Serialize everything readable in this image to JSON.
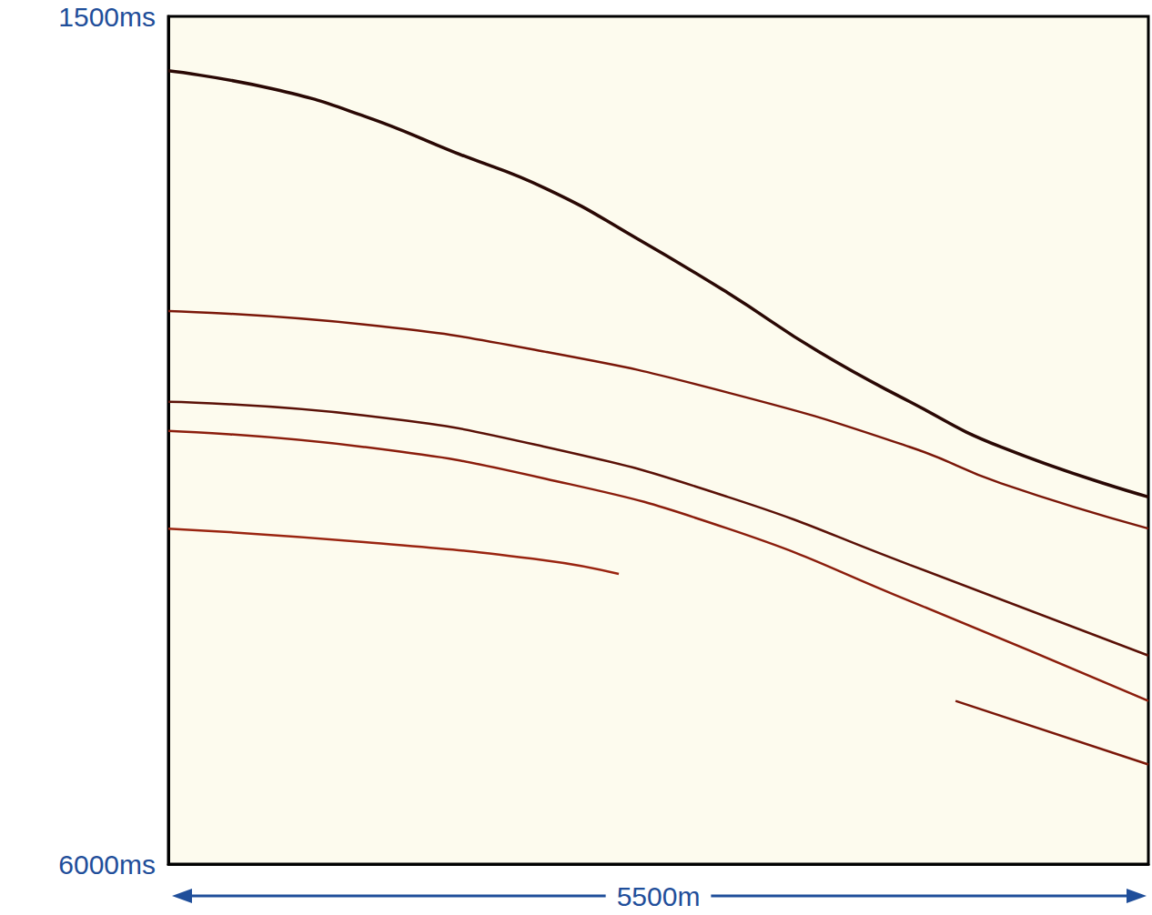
{
  "chart_data": {
    "type": "line",
    "x_label": "5500m",
    "xlim": [
      0,
      5500
    ],
    "ylim": [
      1500,
      6000
    ],
    "yticks": [
      {
        "value": 1500,
        "label": "1500ms"
      },
      {
        "value": 6000,
        "label": "6000ms"
      }
    ],
    "tick_labels": "y",
    "grid": false,
    "series": [
      {
        "color": "#2a0804",
        "x": [
          0,
          587,
          1098,
          1608,
          2119,
          2630,
          3140,
          3651,
          4162,
          4673,
          5500
        ],
        "values": [
          1789,
          1885,
          2029,
          2222,
          2414,
          2679,
          2968,
          3281,
          3546,
          3786,
          4051
        ]
      },
      {
        "color": "#7a1608",
        "x": [
          0,
          1098,
          2119,
          3140,
          4162,
          4673,
          5500
        ],
        "values": [
          3064,
          3136,
          3281,
          3497,
          3786,
          3979,
          4219
        ]
      },
      {
        "color": "#5a1006",
        "x": [
          0,
          1098,
          2119,
          3140,
          4162,
          5500
        ],
        "values": [
          3546,
          3618,
          3786,
          4051,
          4412,
          4893
        ]
      },
      {
        "color": "#8b1d0c",
        "x": [
          0,
          1098,
          2119,
          3140,
          4162,
          5500
        ],
        "values": [
          3700,
          3786,
          3955,
          4219,
          4604,
          5134
        ]
      },
      {
        "color": "#9a2410",
        "x": [
          0,
          1098,
          2119,
          2528
        ],
        "values": [
          4219,
          4291,
          4388,
          4460
        ]
      },
      {
        "color": "#7a1608",
        "x": [
          4418,
          5500
        ],
        "values": [
          5134,
          5471
        ]
      }
    ]
  }
}
